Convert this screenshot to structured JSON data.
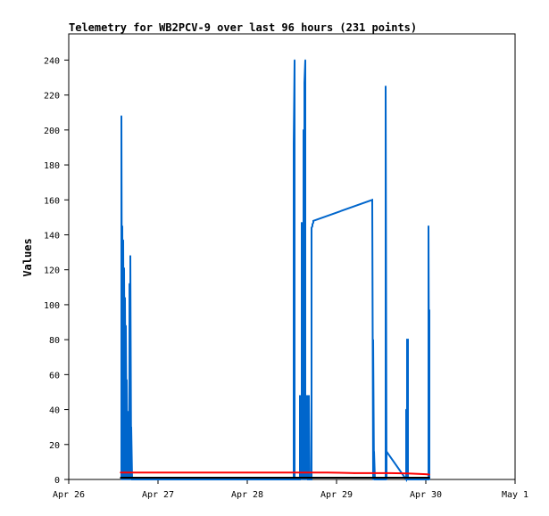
{
  "chart_data": {
    "type": "line",
    "title": "Telemetry for WB2PCV-9 over last 96 hours (231 points)",
    "xlabel": "",
    "ylabel": "Values",
    "xlim": [
      "Apr 26",
      "May 1"
    ],
    "x_tick_labels": [
      "Apr 26",
      "Apr 27",
      "Apr 28",
      "Apr 29",
      "Apr 30",
      "May 1"
    ],
    "ylim": [
      0,
      255
    ],
    "y_ticks": [
      0,
      20,
      40,
      60,
      80,
      100,
      120,
      140,
      160,
      180,
      200,
      220,
      240
    ],
    "grid": false,
    "legend": "none",
    "colors": {
      "series_blue": "#0066cc",
      "series_red": "#ff0000",
      "series_black": "#000000",
      "axis": "#000000"
    },
    "x_unit_note": "x values are days after Apr 26 00:00",
    "series": [
      {
        "color": "#0066cc",
        "x": [
          0.59,
          0.59,
          0.6,
          0.6,
          0.61,
          0.61,
          0.62,
          0.62,
          0.63,
          0.63,
          0.64,
          0.64,
          0.65,
          0.65,
          0.66,
          0.66,
          0.67,
          0.67,
          0.68,
          0.68,
          0.69,
          0.69,
          0.7,
          0.7,
          0.71,
          0.71,
          2.52,
          2.52,
          2.53,
          2.53,
          2.59,
          2.59,
          2.61,
          2.61,
          2.63,
          2.63,
          2.64,
          2.64,
          2.65,
          2.65,
          2.66,
          2.66,
          2.67,
          2.67,
          2.68,
          2.68,
          2.69,
          2.69,
          2.7,
          2.7,
          2.72,
          2.72,
          2.73,
          2.73,
          2.74,
          2.74,
          3.4,
          3.41,
          3.41,
          3.42,
          3.42,
          3.43,
          3.43,
          3.55,
          3.55,
          3.56,
          3.56,
          3.78,
          3.78,
          3.79,
          3.79,
          3.8,
          3.8,
          4.03,
          4.03,
          4.04,
          4.04
        ],
        "y": [
          0,
          208,
          0,
          145,
          0,
          137,
          0,
          121,
          0,
          104,
          0,
          88,
          0,
          57,
          0,
          39,
          0,
          24,
          0,
          112,
          0,
          128,
          0,
          30,
          0,
          0,
          0,
          192,
          240,
          0,
          0,
          48,
          0,
          147,
          0,
          200,
          0,
          227,
          240,
          0,
          12,
          30,
          0,
          48,
          0,
          0,
          0,
          48,
          0,
          0,
          0,
          144,
          145,
          146,
          147,
          148,
          160,
          0,
          80,
          0,
          16,
          0,
          0,
          0,
          225,
          0,
          16,
          0,
          40,
          0,
          80,
          80,
          0,
          0,
          145,
          0,
          97
        ]
      },
      {
        "color": "#ff0000",
        "x": [
          0.58,
          1.0,
          2.0,
          2.6,
          2.9,
          3.2,
          3.6,
          3.8,
          4.0,
          4.04
        ],
        "y": [
          4,
          4,
          4,
          4,
          4,
          3.6,
          3.6,
          3.4,
          3.0,
          2.8
        ]
      },
      {
        "color": "#000000",
        "x": [
          0.58,
          1.0,
          2.0,
          3.0,
          4.04
        ],
        "y": [
          1,
          1,
          1,
          1,
          1
        ]
      }
    ]
  }
}
